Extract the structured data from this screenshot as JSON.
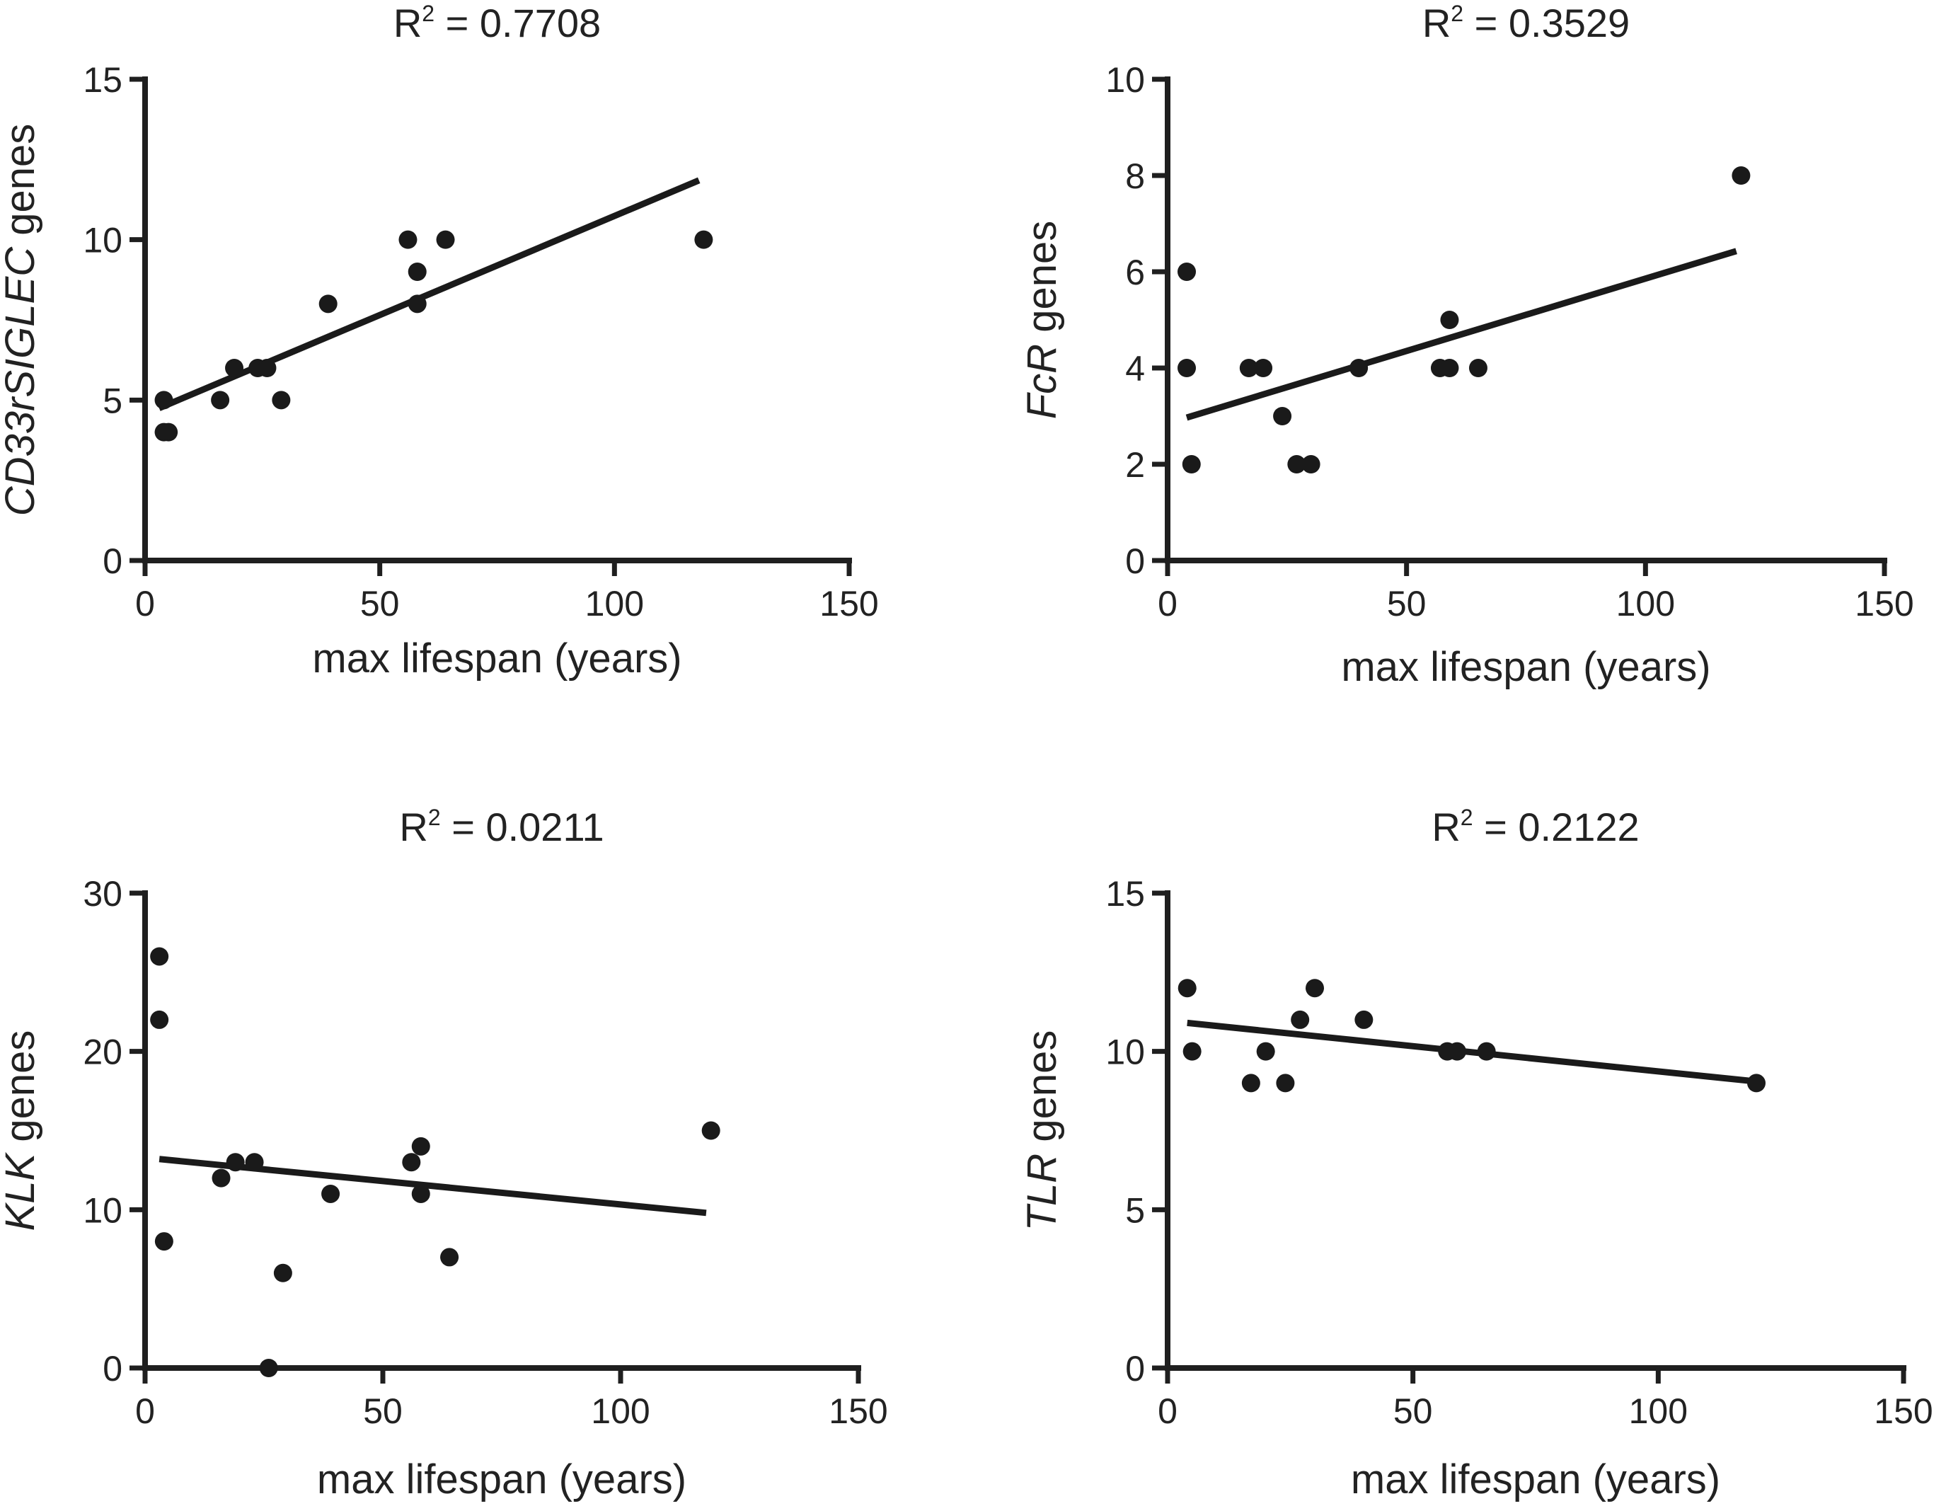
{
  "chart_data": [
    {
      "type": "scatter",
      "title_prefix": "R",
      "title_sup": "2",
      "title_value": " = 0.7708",
      "xlabel": "max lifespan (years)",
      "ylabel_italic": "CD33rSIGLEC",
      "ylabel_rest": " genes",
      "xlim": [
        0,
        150
      ],
      "ylim": [
        0,
        15
      ],
      "xticks": [
        0,
        50,
        100,
        150
      ],
      "yticks": [
        0,
        5,
        10,
        15
      ],
      "points": [
        {
          "x": 4,
          "y": 5
        },
        {
          "x": 4,
          "y": 4
        },
        {
          "x": 5,
          "y": 4
        },
        {
          "x": 16,
          "y": 5
        },
        {
          "x": 19,
          "y": 6
        },
        {
          "x": 24,
          "y": 6
        },
        {
          "x": 26,
          "y": 6
        },
        {
          "x": 29,
          "y": 5
        },
        {
          "x": 39,
          "y": 8
        },
        {
          "x": 56,
          "y": 10
        },
        {
          "x": 58,
          "y": 9
        },
        {
          "x": 58,
          "y": 8
        },
        {
          "x": 64,
          "y": 10
        },
        {
          "x": 119,
          "y": 10
        }
      ],
      "fit": {
        "x1": 3,
        "y1": 4.75,
        "x2": 118,
        "y2": 11.85
      }
    },
    {
      "type": "scatter",
      "title_prefix": "R",
      "title_sup": "2",
      "title_value": " = 0.3529",
      "xlabel": "max lifespan  (years)",
      "ylabel_italic": "FcR",
      "ylabel_rest": " genes",
      "xlim": [
        0,
        150
      ],
      "ylim": [
        0,
        10
      ],
      "xticks": [
        0,
        50,
        100,
        150
      ],
      "yticks": [
        0,
        2,
        4,
        6,
        8,
        10
      ],
      "points": [
        {
          "x": 4,
          "y": 6
        },
        {
          "x": 4,
          "y": 4
        },
        {
          "x": 5,
          "y": 2
        },
        {
          "x": 17,
          "y": 4
        },
        {
          "x": 20,
          "y": 4
        },
        {
          "x": 24,
          "y": 3
        },
        {
          "x": 27,
          "y": 2
        },
        {
          "x": 30,
          "y": 2
        },
        {
          "x": 40,
          "y": 4
        },
        {
          "x": 57,
          "y": 4
        },
        {
          "x": 59,
          "y": 4
        },
        {
          "x": 59,
          "y": 5
        },
        {
          "x": 65,
          "y": 4
        },
        {
          "x": 120,
          "y": 8
        }
      ],
      "fit": {
        "x1": 4,
        "y1": 2.97,
        "x2": 119,
        "y2": 6.43
      }
    },
    {
      "type": "scatter",
      "title_prefix": "R",
      "title_sup": "2",
      "title_value": " = 0.0211",
      "xlabel": "max lifespan  (years)",
      "ylabel_italic": "KLK",
      "ylabel_rest": " genes",
      "xlim": [
        0,
        150
      ],
      "ylim": [
        0,
        30
      ],
      "xticks": [
        0,
        50,
        100,
        150
      ],
      "yticks": [
        0,
        10,
        20,
        30
      ],
      "points": [
        {
          "x": 3,
          "y": 26
        },
        {
          "x": 3,
          "y": 22
        },
        {
          "x": 4,
          "y": 8
        },
        {
          "x": 16,
          "y": 12
        },
        {
          "x": 19,
          "y": 13
        },
        {
          "x": 23,
          "y": 13
        },
        {
          "x": 26,
          "y": 0
        },
        {
          "x": 29,
          "y": 6
        },
        {
          "x": 39,
          "y": 11
        },
        {
          "x": 56,
          "y": 13
        },
        {
          "x": 58,
          "y": 14
        },
        {
          "x": 58,
          "y": 11
        },
        {
          "x": 64,
          "y": 7
        },
        {
          "x": 119,
          "y": 15
        }
      ],
      "fit": {
        "x1": 3,
        "y1": 13.2,
        "x2": 118,
        "y2": 9.8
      }
    },
    {
      "type": "scatter",
      "title_prefix": "R",
      "title_sup": "2",
      "title_value": " = 0.2122",
      "xlabel": "max lifespan  (years)",
      "ylabel_italic": "TLR",
      "ylabel_rest": " genes",
      "xlim": [
        0,
        150
      ],
      "ylim": [
        0,
        15
      ],
      "xticks": [
        0,
        50,
        100,
        150
      ],
      "yticks": [
        0,
        5,
        10,
        15
      ],
      "points": [
        {
          "x": 4,
          "y": 12
        },
        {
          "x": 5,
          "y": 10
        },
        {
          "x": 17,
          "y": 9
        },
        {
          "x": 20,
          "y": 10
        },
        {
          "x": 24,
          "y": 9
        },
        {
          "x": 27,
          "y": 11
        },
        {
          "x": 30,
          "y": 12
        },
        {
          "x": 40,
          "y": 11
        },
        {
          "x": 57,
          "y": 10
        },
        {
          "x": 59,
          "y": 10
        },
        {
          "x": 65,
          "y": 10
        },
        {
          "x": 120,
          "y": 9
        }
      ],
      "fit": {
        "x1": 4,
        "y1": 10.9,
        "x2": 120,
        "y2": 9.05
      }
    }
  ]
}
